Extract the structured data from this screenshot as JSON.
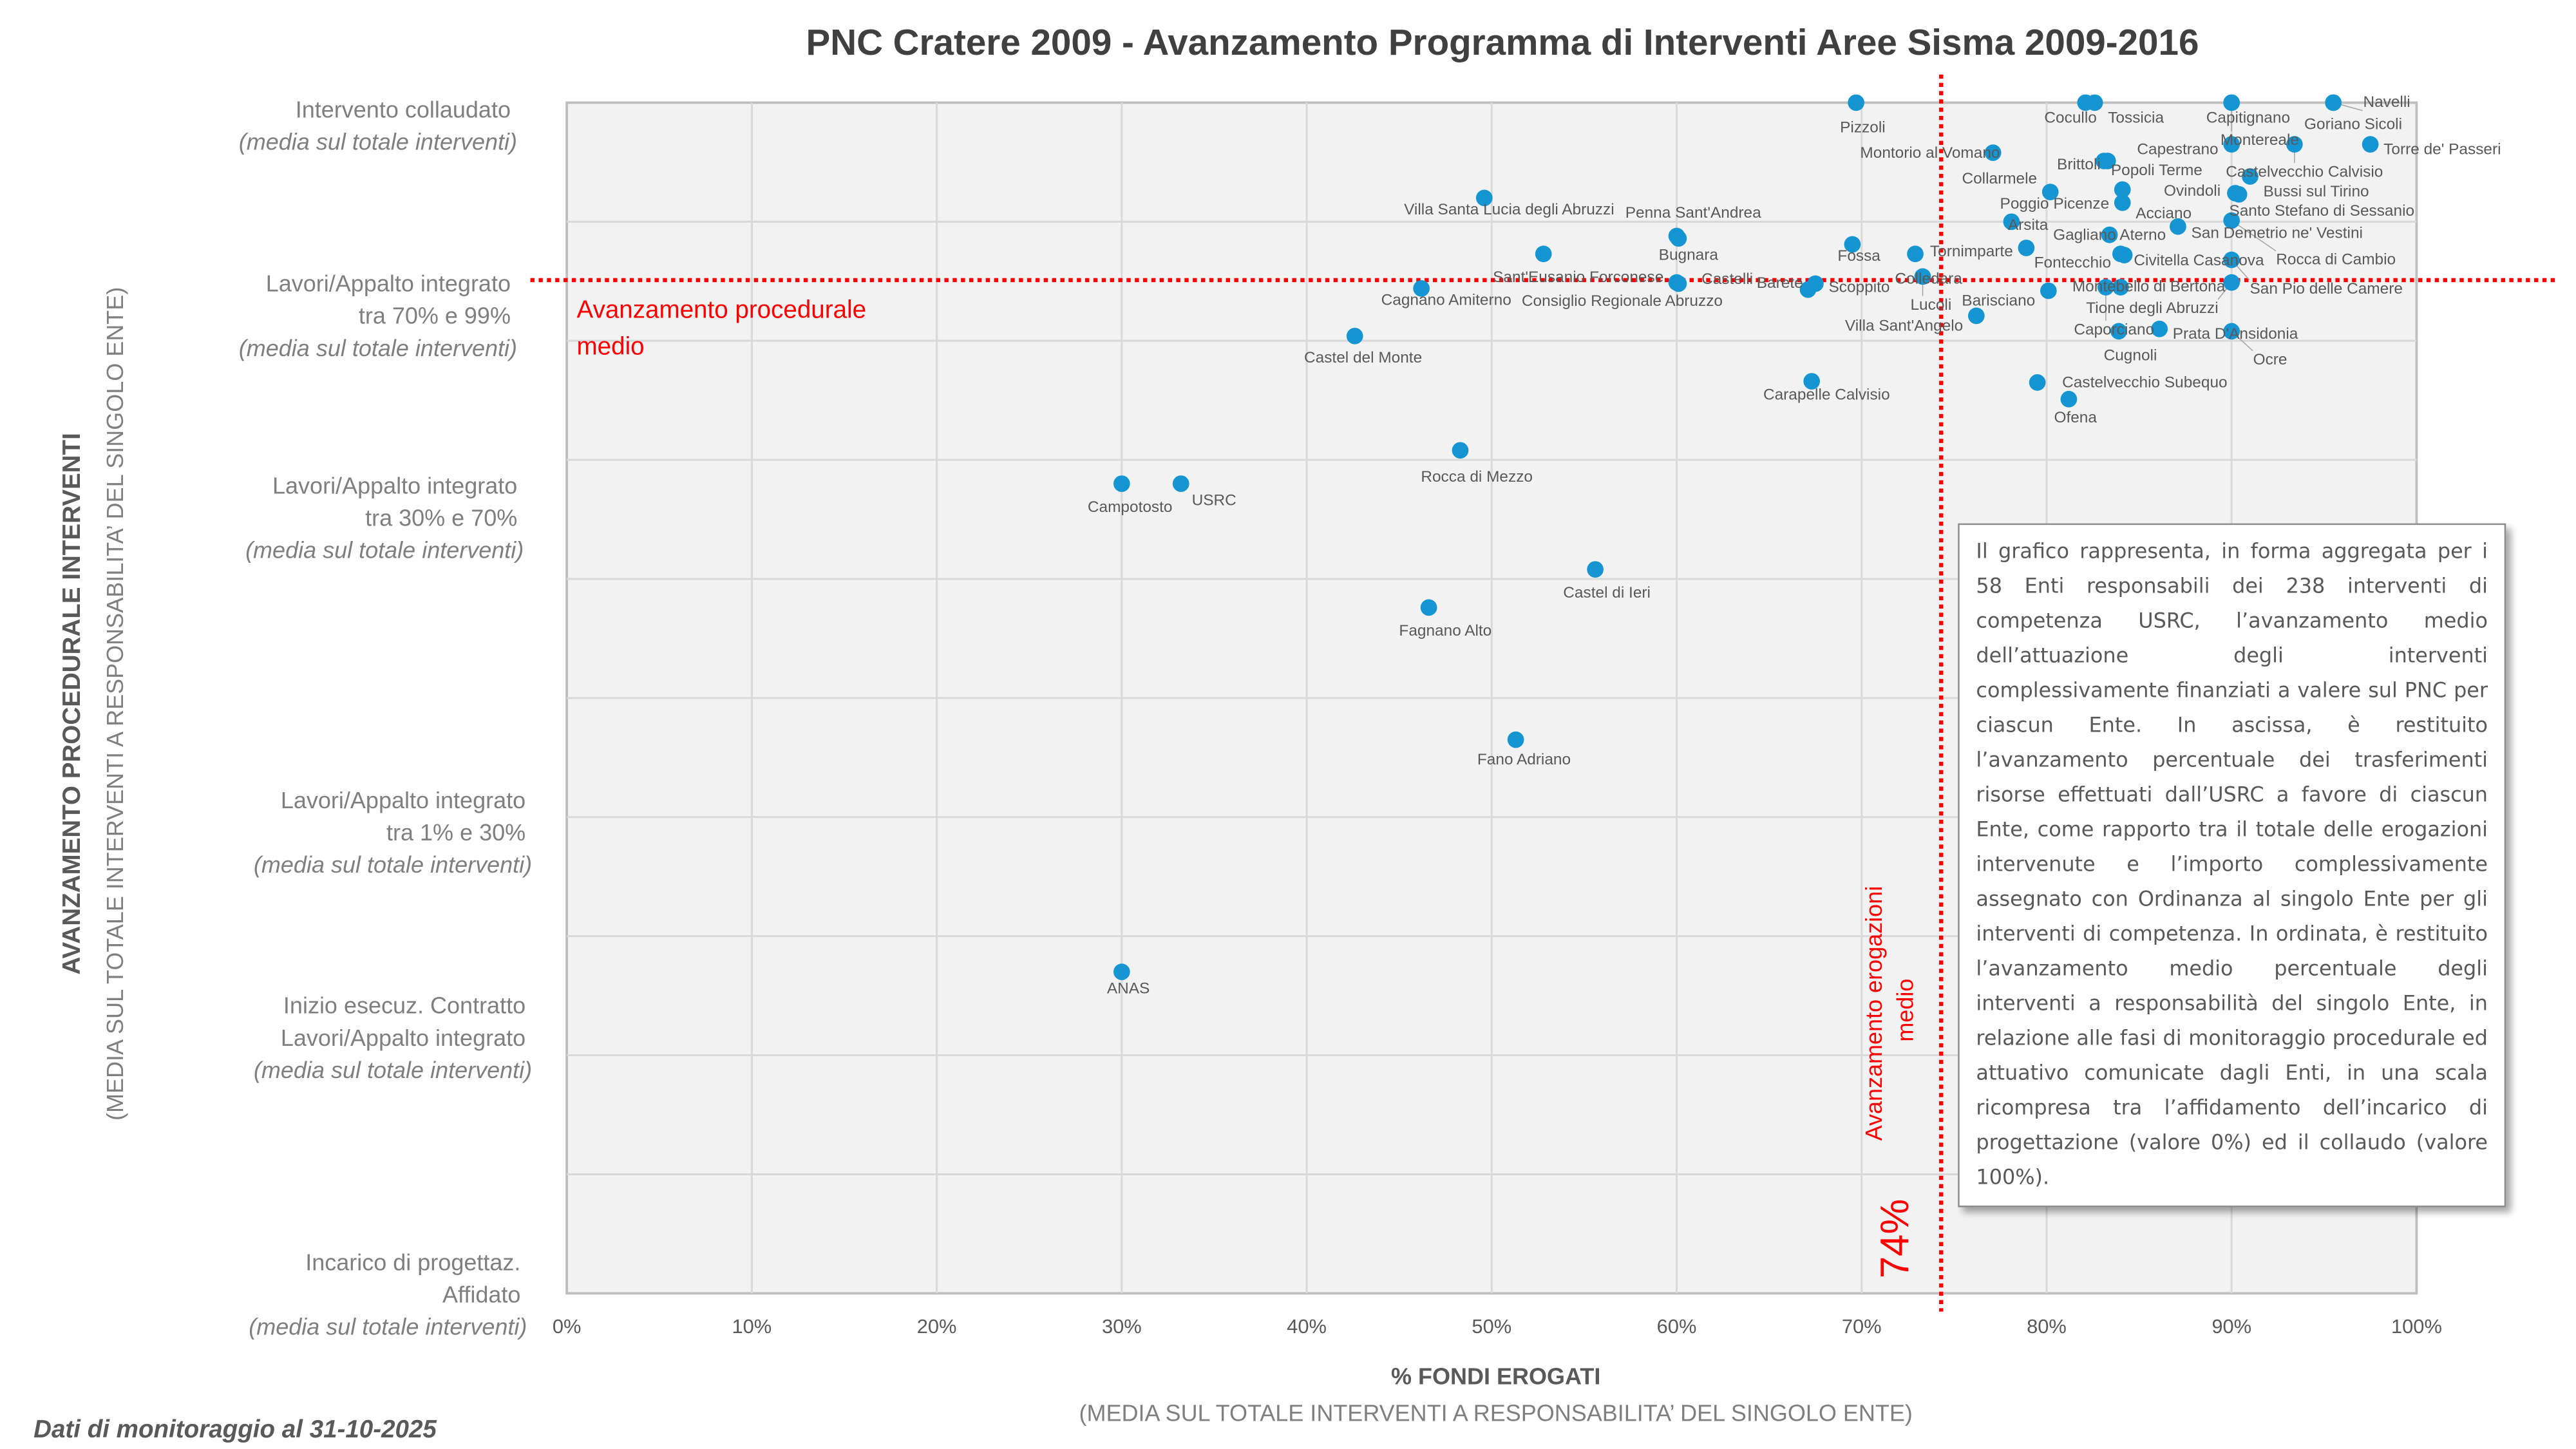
{
  "title": "PNC Cratere 2009 - Avanzamento Programma di Interventi Aree Sisma  2009-2016",
  "footer": "Dati di monitoraggio al 31-10-2025",
  "note": "Il grafico rappresenta, in forma aggregata per i 58 Enti responsabili dei 238 interventi di competenza USRC, l’avanzamento medio dell’attuazione degli interventi complessivamente finanziati a valere sul PNC per ciascun Ente. In ascissa, è restituito l’avanzamento percentuale dei trasferimenti risorse effettuati dall’USRC a favore di ciascun Ente, come rapporto tra il totale delle erogazioni intervenute e l’importo complessivamente assegnato con Ordinanza al singolo Ente per gli interventi di competenza. In ordinata, è restituito l’avanzamento medio percentuale degli interventi a responsabilità del singolo Ente, in relazione alle fasi di monitoraggio procedurale ed attuativo comunicate dagli Enti, in una scala ricompresa tra l’affidamento dell’incarico di progettazione (valore 0%) ed il collaudo (valore 100%).",
  "chart_data": {
    "type": "scatter",
    "title": "PNC Cratere 2009 - Avanzamento Programma di Interventi Aree Sisma  2009-2016",
    "xlabel": "% FONDI EROGATI",
    "xlabel_sub": "(MEDIA SUL TOTALE INTERVENTI A RESPONSABILITA’ DEL SINGOLO ENTE)",
    "ylabel": "AVANZAMENTO PROCEDURALE INTERVENTI",
    "ylabel_sub": "(MEDIA SUL TOTALE INTERVENTI A RESPONSABILITA’ DEL SINGOLO ENTE)",
    "xlim": [
      0,
      100
    ],
    "ylim": [
      0,
      100
    ],
    "grid": true,
    "x_ticks": [
      "0%",
      "10%",
      "20%",
      "30%",
      "40%",
      "50%",
      "60%",
      "70%",
      "80%",
      "90%",
      "100%"
    ],
    "y_category_labels": [
      {
        "lines": [
          "Intervento collaudato"
        ],
        "note": "(media sul totale interventi)"
      },
      {
        "lines": [
          "Lavori/Appalto integrato",
          "tra 70% e 99%"
        ],
        "note": "(media sul totale interventi)"
      },
      {
        "lines": [
          "Lavori/Appalto integrato",
          "tra 30% e 70%"
        ],
        "note": "(media sul totale interventi)"
      },
      {
        "lines": [
          "Lavori/Appalto integrato",
          "tra 1% e 30%"
        ],
        "note": "(media sul totale interventi)"
      },
      {
        "lines": [
          "Inizio esecuz. Contratto",
          "Lavori/Appalto integrato"
        ],
        "note": "(media sul totale interventi)"
      },
      {
        "lines": [
          "Incarico di progettaz.",
          "Affidato"
        ],
        "note": "(media sul totale interventi)"
      }
    ],
    "point_color": "#1596d3",
    "reference_lines": {
      "color": "#ff0000",
      "horizontal": {
        "y": 85.1,
        "label": [
          "Avanzamento procedurale",
          "medio"
        ]
      },
      "vertical": {
        "x": 74.3,
        "label": [
          "Avanzamento erogazioni",
          "medio"
        ],
        "value_label": "74%"
      }
    },
    "points": [
      {
        "name": "Pizzoli",
        "x": 69.7,
        "y": 100
      },
      {
        "name": "Cocullo",
        "x": 82.1,
        "y": 100
      },
      {
        "name": "Tossicia",
        "x": 82.6,
        "y": 100
      },
      {
        "name": "Capitignano",
        "x": 90.0,
        "y": 100
      },
      {
        "name": "Montereale",
        "x": 90.0,
        "y": 100
      },
      {
        "name": "Goriano Sicoli",
        "x": 95.5,
        "y": 100
      },
      {
        "name": "Navelli",
        "x": 95.5,
        "y": 100
      },
      {
        "name": "Capestrano",
        "x": 90.0,
        "y": 96.5
      },
      {
        "name": "Torre de' Passeri",
        "x": 97.5,
        "y": 96.5
      },
      {
        "name": "Castelvecchio Calvisio",
        "x": 93.4,
        "y": 96.5
      },
      {
        "name": "Montorio al Vomano",
        "x": 77.1,
        "y": 95.8
      },
      {
        "name": "Brittoli",
        "x": 83.1,
        "y": 95.1
      },
      {
        "name": "Popoli Terme",
        "x": 83.3,
        "y": 95.1
      },
      {
        "name": "Collarmele",
        "x": 80.2,
        "y": 92.5
      },
      {
        "name": "Ovindoli",
        "x": 90.2,
        "y": 92.4
      },
      {
        "name": "Poggio Picenze",
        "x": 84.1,
        "y": 92.7
      },
      {
        "name": "Acciano",
        "x": 84.1,
        "y": 91.6
      },
      {
        "name": "Bussi sul Tirino",
        "x": 91.0,
        "y": 93.8
      },
      {
        "name": "Arsita",
        "x": 78.1,
        "y": 90.0
      },
      {
        "name": "San Demetrio ne' Vestini",
        "x": 87.1,
        "y": 89.6
      },
      {
        "name": "Santo Stefano di Sessanio",
        "x": 90.4,
        "y": 92.3
      },
      {
        "name": "Gagliano Aterno",
        "x": 83.4,
        "y": 88.9
      },
      {
        "name": "Rocca di Cambio",
        "x": 90.0,
        "y": 90.1
      },
      {
        "name": "Civitella Casanova",
        "x": 84.0,
        "y": 87.3
      },
      {
        "name": "Tornimparte",
        "x": 78.9,
        "y": 87.8
      },
      {
        "name": "Fontecchio",
        "x": 84.2,
        "y": 87.2
      },
      {
        "name": "San Pio delle Camere",
        "x": 90.0,
        "y": 86.8
      },
      {
        "name": "Montebello di Bertona",
        "x": 84.0,
        "y": 84.5
      },
      {
        "name": "Tione degli Abruzzi",
        "x": 90.0,
        "y": 84.9
      },
      {
        "name": "Barisciano",
        "x": 80.1,
        "y": 84.2
      },
      {
        "name": "Caporciano",
        "x": 83.2,
        "y": 84.5
      },
      {
        "name": "Prata D'Ansidonia",
        "x": 86.1,
        "y": 81.0
      },
      {
        "name": "Villa Sant'Angelo",
        "x": 76.2,
        "y": 82.1
      },
      {
        "name": "Cugnoli",
        "x": 83.9,
        "y": 80.8
      },
      {
        "name": "Ocre",
        "x": 90.0,
        "y": 80.8
      },
      {
        "name": "Castelvecchio Subequo",
        "x": 79.5,
        "y": 76.5
      },
      {
        "name": "Ofena",
        "x": 81.2,
        "y": 75.1
      },
      {
        "name": "Villa Santa Lucia degli Abruzzi",
        "x": 49.6,
        "y": 92.0
      },
      {
        "name": "Penna Sant'Andrea",
        "x": 60.0,
        "y": 88.8
      },
      {
        "name": "Bugnara",
        "x": 60.1,
        "y": 88.6
      },
      {
        "name": "Fossa",
        "x": 69.5,
        "y": 88.1
      },
      {
        "name": "Colledara",
        "x": 72.9,
        "y": 87.3
      },
      {
        "name": "Sant'Eusanio Forconese",
        "x": 52.8,
        "y": 87.3
      },
      {
        "name": "Castelli",
        "x": 60.0,
        "y": 84.9
      },
      {
        "name": "Barete",
        "x": 67.1,
        "y": 84.3
      },
      {
        "name": "Scoppito",
        "x": 67.5,
        "y": 84.8
      },
      {
        "name": "Lucoli",
        "x": 73.3,
        "y": 85.4
      },
      {
        "name": "Cagnano Amiterno",
        "x": 46.2,
        "y": 84.4
      },
      {
        "name": "Consiglio Regionale Abruzzo",
        "x": 60.1,
        "y": 84.8
      },
      {
        "name": "Castel del Monte",
        "x": 42.6,
        "y": 80.4
      },
      {
        "name": "Carapelle Calvisio",
        "x": 67.3,
        "y": 76.6
      },
      {
        "name": "Rocca di Mezzo",
        "x": 48.3,
        "y": 70.8
      },
      {
        "name": "Campotosto",
        "x": 30.0,
        "y": 68.0
      },
      {
        "name": "USRC",
        "x": 33.2,
        "y": 68.0
      },
      {
        "name": "Castel di Ieri",
        "x": 55.6,
        "y": 60.8
      },
      {
        "name": "Fagnano Alto",
        "x": 46.6,
        "y": 57.6
      },
      {
        "name": "Fano Adriano",
        "x": 51.3,
        "y": 46.5
      },
      {
        "name": "ANAS",
        "x": 30.0,
        "y": 27.0
      }
    ]
  }
}
